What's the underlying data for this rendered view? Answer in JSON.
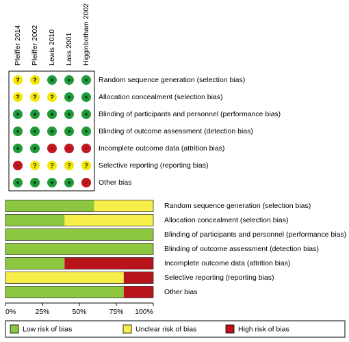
{
  "grid": {
    "studies": [
      "Pfeiffer 2014",
      "Pfeiffer 2002",
      "Lewis 2010",
      "Lass 2001",
      "Higginbotham 2002"
    ],
    "domains": [
      "Random sequence generation (selection bias)",
      "Allocation concealment (selection bias)",
      "Blinding of participants and personnel (performance bias)",
      "Blinding of outcome assessment (detection bias)",
      "Incomplete outcome data (attrition bias)",
      "Selective reporting (reporting bias)",
      "Other bias"
    ],
    "cells": [
      [
        "?",
        "?",
        "+",
        "+",
        "+"
      ],
      [
        "?",
        "?",
        "?",
        "+",
        "+"
      ],
      [
        "+",
        "+",
        "+",
        "+",
        "+"
      ],
      [
        "+",
        "+",
        "+",
        "+",
        "+"
      ],
      [
        "+",
        "+",
        "-",
        "-",
        "-"
      ],
      [
        "-",
        "?",
        "?",
        "?",
        "?"
      ],
      [
        "+",
        "+",
        "+",
        "+",
        "-"
      ]
    ]
  },
  "chart_data": {
    "type": "stacked_barh",
    "categories": [
      "Random sequence generation (selection bias)",
      "Allocation concealment (selection bias)",
      "Blinding of participants and personnel (performance bias)",
      "Blinding of outcome assessment (detection bias)",
      "Incomplete outcome data (attrition bias)",
      "Selective reporting (reporting bias)",
      "Other bias"
    ],
    "series": [
      {
        "name": "Low risk of bias",
        "symbol": "+",
        "color": "#8dc63f",
        "mark_color": "#1f9b3a",
        "values": [
          60,
          40,
          100,
          100,
          40,
          0,
          80
        ]
      },
      {
        "name": "Unclear risk of bias",
        "symbol": "?",
        "color": "#f6ef4a",
        "mark_color": "#f3e600",
        "values": [
          40,
          60,
          0,
          0,
          0,
          80,
          0
        ]
      },
      {
        "name": "High risk of bias",
        "symbol": "-",
        "color": "#b8121b",
        "mark_color": "#c3161e",
        "values": [
          0,
          0,
          0,
          0,
          60,
          20,
          20
        ]
      }
    ],
    "xlim": [
      0,
      100
    ],
    "xticks": [
      {
        "value": 0,
        "label": "0%"
      },
      {
        "value": 25,
        "label": "25%"
      },
      {
        "value": 50,
        "label": "50%"
      },
      {
        "value": 75,
        "label": "75%"
      },
      {
        "value": 100,
        "label": "100%"
      }
    ]
  }
}
